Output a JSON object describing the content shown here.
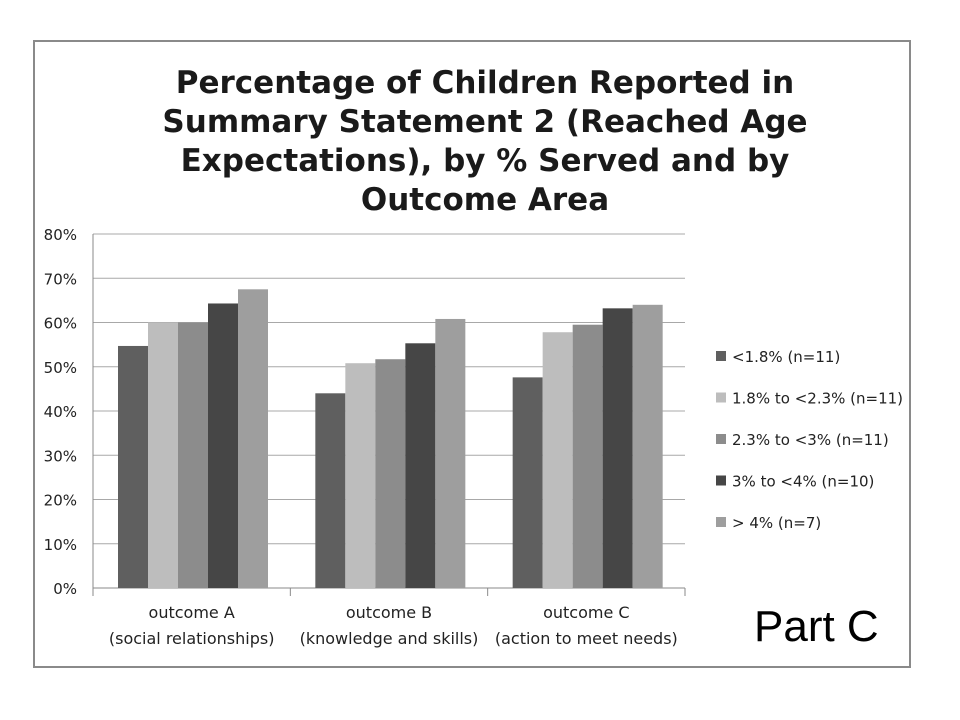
{
  "chart_data": {
    "type": "bar",
    "title": "Percentage of Children Reported in Summary Statement 2 (Reached Age Expectations), by % Served and by Outcome Area",
    "categories": [
      [
        "outcome A",
        "(social relationships)"
      ],
      [
        "outcome B",
        "(knowledge and skills)"
      ],
      [
        "outcome C",
        "(action to meet needs)"
      ]
    ],
    "series": [
      {
        "name": "<1.8% (n=11)",
        "color": "#5f5f5f",
        "values": [
          54.7,
          44.0,
          47.6
        ]
      },
      {
        "name": "1.8% to <2.3% (n=11)",
        "color": "#bdbdbd",
        "values": [
          60.0,
          50.8,
          57.8
        ]
      },
      {
        "name": "2.3% to <3% (n=11)",
        "color": "#8c8c8c",
        "values": [
          60.0,
          51.7,
          59.5
        ]
      },
      {
        "name": "3% to <4% (n=10)",
        "color": "#464646",
        "values": [
          64.3,
          55.3,
          63.2
        ]
      },
      {
        "name": "> 4% (n=7)",
        "color": "#9e9e9e",
        "values": [
          67.5,
          60.8,
          64.0
        ]
      }
    ],
    "yticks": [
      "0%",
      "10%",
      "20%",
      "30%",
      "40%",
      "50%",
      "60%",
      "70%",
      "80%"
    ],
    "ylim": [
      0,
      80
    ],
    "xlabel": "",
    "ylabel": "",
    "grid": true,
    "legend_position": "right"
  },
  "slide_label": "Part C"
}
